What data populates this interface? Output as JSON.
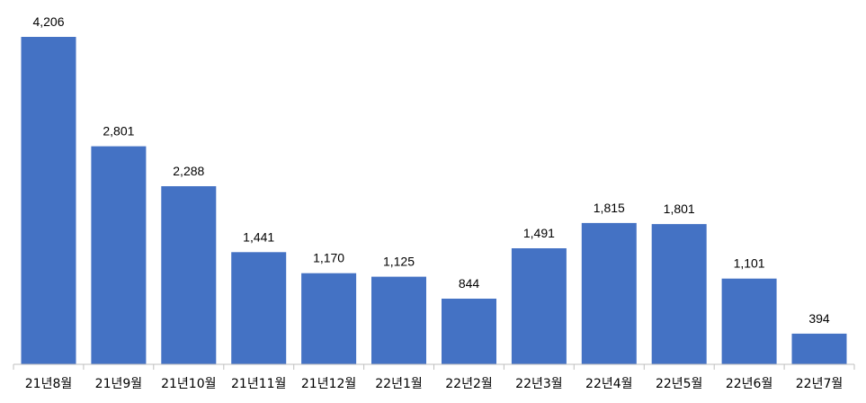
{
  "chart_data": {
    "type": "bar",
    "categories": [
      "21년8월",
      "21년9월",
      "21년10월",
      "21년11월",
      "21년12월",
      "22년1월",
      "22년2월",
      "22년3월",
      "22년4월",
      "22년5월",
      "22년6월",
      "22년7월"
    ],
    "values": [
      4206,
      2801,
      2288,
      1441,
      1170,
      1125,
      844,
      1491,
      1815,
      1801,
      1101,
      394
    ],
    "value_labels": [
      "4,206",
      "2,801",
      "2,288",
      "1,441",
      "1,170",
      "1,125",
      "844",
      "1,491",
      "1,815",
      "1,801",
      "1,101",
      "394"
    ],
    "title": "",
    "xlabel": "",
    "ylabel": "",
    "ylim": [
      0,
      4206
    ],
    "grid": false,
    "legend": "none",
    "bar_color": "#4472C4",
    "axis_color": "#BFBFBF"
  }
}
